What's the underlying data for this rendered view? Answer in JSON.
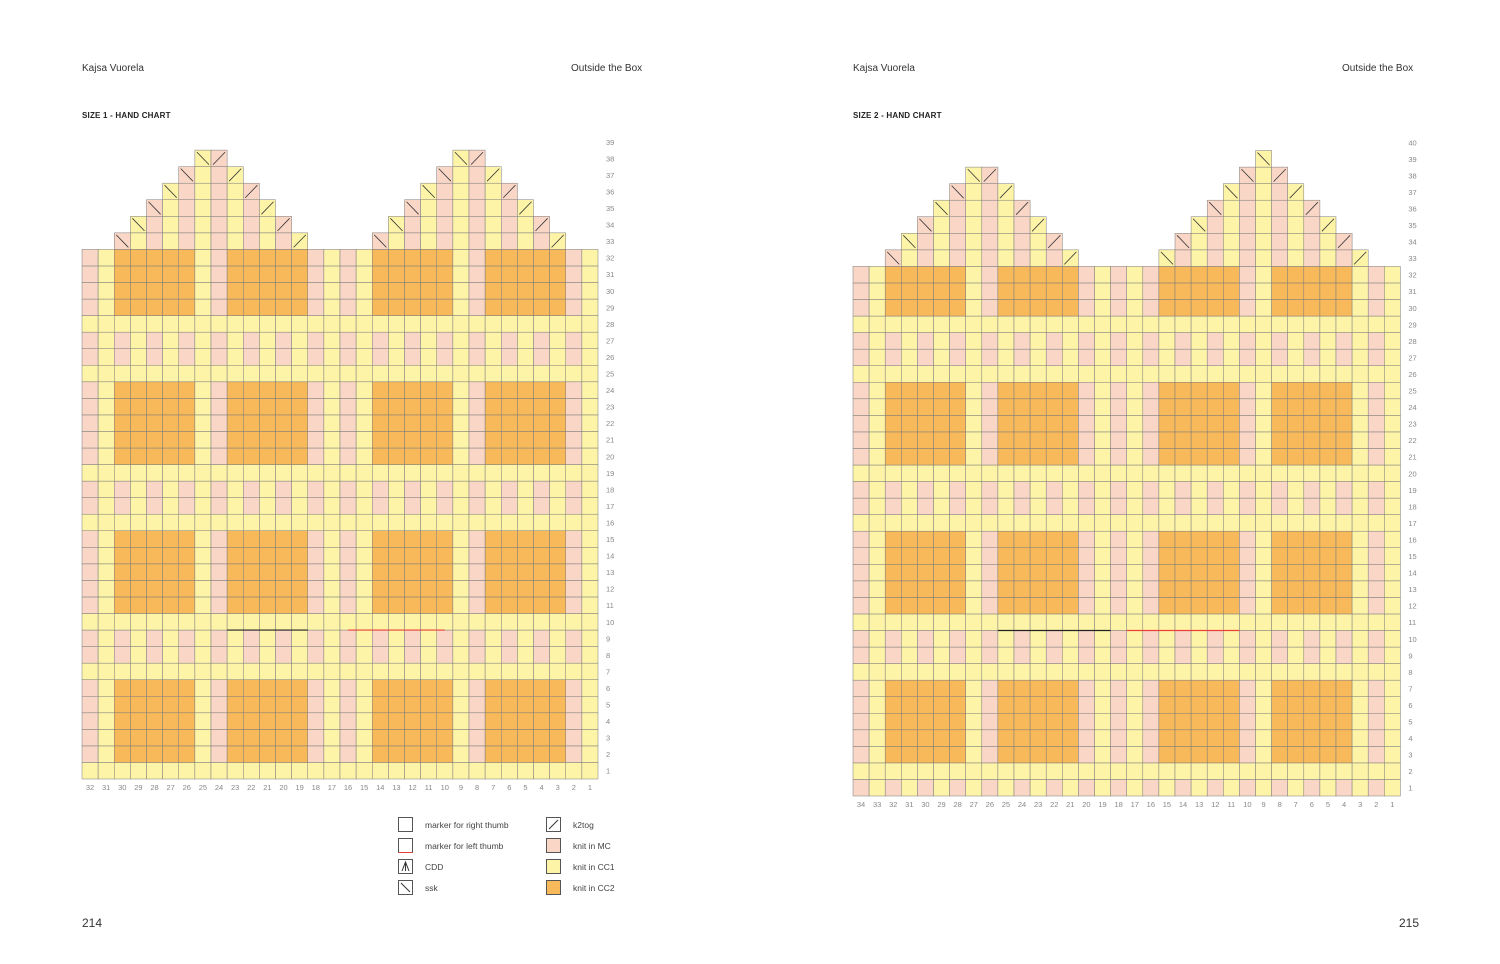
{
  "colors": {
    "MC": "#f9d6c6",
    "CC1": "#fdf4a8",
    "CC2": "#f8b95a",
    "grid_line": "#7a7a7a",
    "right_thumb_marker": "#222222",
    "left_thumb_marker": "#e8413a",
    "row_number": "#888888"
  },
  "left_page": {
    "author": "Kajsa Vuorela",
    "book_title": "Outside the Box",
    "chart_title": "SIZE 1 - HAND CHART",
    "page_number": "214",
    "chart": {
      "columns": 32,
      "rows": 39,
      "column_numbers": [
        "32",
        "31",
        "30",
        "29",
        "28",
        "27",
        "26",
        "25",
        "24",
        "23",
        "22",
        "21",
        "20",
        "19",
        "18",
        "17",
        "16",
        "15",
        "14",
        "13",
        "12",
        "11",
        "10",
        "9",
        "8",
        "7",
        "6",
        "5",
        "4",
        "3",
        "2",
        "1"
      ],
      "row_numbers": [
        "1",
        "2",
        "3",
        "4",
        "5",
        "6",
        "7",
        "8",
        "9",
        "10",
        "11",
        "12",
        "13",
        "14",
        "15",
        "16",
        "17",
        "18",
        "19",
        "20",
        "21",
        "22",
        "23",
        "24",
        "25",
        "26",
        "27",
        "28",
        "29",
        "30",
        "31",
        "32",
        "33",
        "34",
        "35",
        "36",
        "37",
        "38",
        "39"
      ]
    }
  },
  "right_page": {
    "author": "Kajsa Vuorela",
    "book_title": "Outside the Box",
    "chart_title": "SIZE 2 - HAND CHART",
    "page_number": "215",
    "chart": {
      "columns": 34,
      "rows": 40,
      "column_numbers": [
        "34",
        "33",
        "32",
        "31",
        "30",
        "29",
        "28",
        "27",
        "26",
        "25",
        "24",
        "23",
        "22",
        "21",
        "20",
        "19",
        "18",
        "17",
        "16",
        "15",
        "14",
        "13",
        "12",
        "11",
        "10",
        "9",
        "8",
        "7",
        "6",
        "5",
        "4",
        "3",
        "2",
        "1"
      ],
      "row_numbers": [
        "1",
        "2",
        "3",
        "4",
        "5",
        "6",
        "7",
        "8",
        "9",
        "10",
        "11",
        "12",
        "13",
        "14",
        "15",
        "16",
        "17",
        "18",
        "19",
        "20",
        "21",
        "22",
        "23",
        "24",
        "25",
        "26",
        "27",
        "28",
        "29",
        "30",
        "31",
        "32",
        "33",
        "34",
        "35",
        "36",
        "37",
        "38",
        "39",
        "40"
      ]
    }
  },
  "legend": [
    {
      "symbol": "right-thumb-marker",
      "label": "marker for right thumb"
    },
    {
      "symbol": "left-thumb-marker",
      "label": "marker for left thumb"
    },
    {
      "symbol": "cdd",
      "label": "CDD"
    },
    {
      "symbol": "ssk",
      "label": "ssk"
    },
    {
      "symbol": "k2tog",
      "label": "k2tog"
    },
    {
      "symbol": "mc",
      "label": "knit in MC"
    },
    {
      "symbol": "cc1",
      "label": "knit in CC1"
    },
    {
      "symbol": "cc2",
      "label": "knit in CC2"
    }
  ]
}
